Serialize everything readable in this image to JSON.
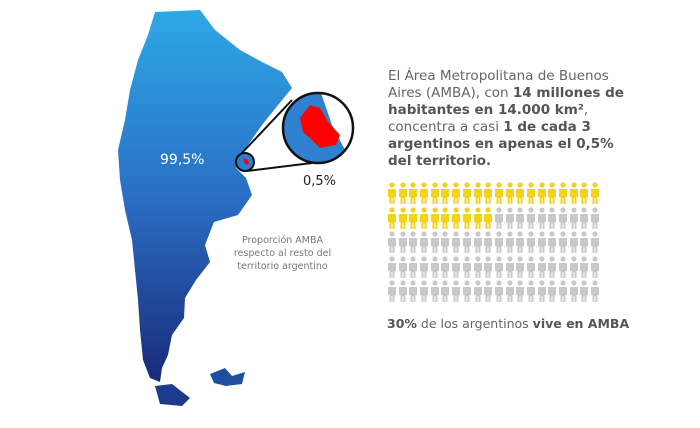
{
  "map": {
    "mainland_label": "99,5%",
    "amba_label": "0,5%",
    "caption": "Proporción AMBA respecto al resto del territorio argentino"
  },
  "headline": {
    "t1": "El Área Metropolitana de Buenos Aires (AMBA), con ",
    "b1": "14 millones de habitantes en 14.000 km²",
    "t2": ", concentra a casi ",
    "b2": "1 de cada 3 argentinos en apenas el 0,5% del territorio."
  },
  "pictogram": {
    "total": 100,
    "highlighted": 30,
    "columns": 20,
    "highlight_color": "#f5d21a",
    "base_color": "#c8c8c8"
  },
  "footer": {
    "b1": "30%",
    "t1": " de los argentinos ",
    "b2": "vive en AMBA"
  },
  "colors": {
    "map_top": "#2ea8e6",
    "map_bottom": "#1a2a7a",
    "amba": "#ff0000"
  }
}
